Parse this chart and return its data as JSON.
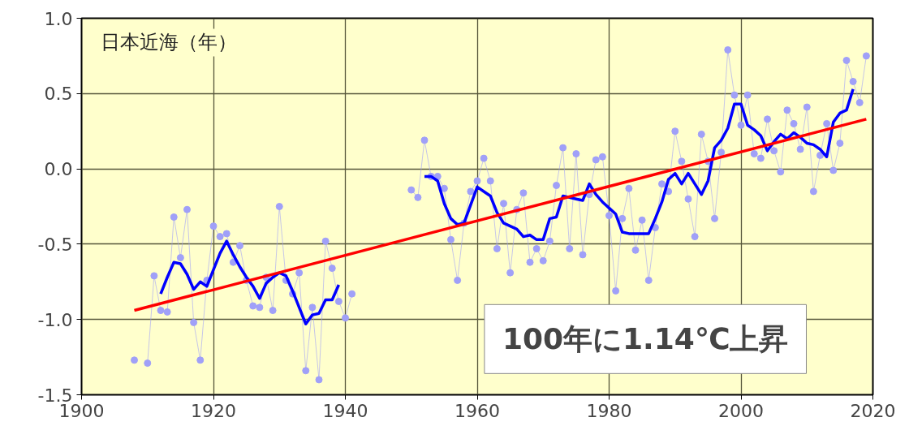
{
  "chart_data": {
    "type": "line",
    "title": "日本近海（年）",
    "xlim": [
      1900,
      2020
    ],
    "xticks": [
      1900,
      1920,
      1940,
      1960,
      1980,
      2000,
      2020
    ],
    "ylim": [
      -1.5,
      1.0
    ],
    "yticks": [
      {
        "value": 1.0,
        "label": "1.0"
      },
      {
        "value": 0.5,
        "label": "0.5"
      },
      {
        "value": 0.0,
        "label": "0.0"
      },
      {
        "value": -0.5,
        "label": "-0.5"
      },
      {
        "value": -1.0,
        "label": "-1.0"
      },
      {
        "value": -1.5,
        "label": "-1.5"
      }
    ],
    "grid": true,
    "annotations": [
      "100年に1.14℃上昇"
    ],
    "series": [
      {
        "color": "#a0a0f8",
        "marker": "circle",
        "x": [
          1908,
          1909,
          1910,
          1911,
          1912,
          1913,
          1914,
          1915,
          1916,
          1917,
          1918,
          1919,
          1920,
          1921,
          1922,
          1923,
          1924,
          1925,
          1926,
          1927,
          1928,
          1929,
          1930,
          1931,
          1932,
          1933,
          1934,
          1935,
          1936,
          1937,
          1938,
          1939,
          1940,
          1941,
          1942,
          1943,
          1944,
          1945,
          1946,
          1947,
          1948,
          1949,
          1950,
          1951,
          1952,
          1953,
          1954,
          1955,
          1956,
          1957,
          1958,
          1959,
          1960,
          1961,
          1962,
          1963,
          1964,
          1965,
          1966,
          1967,
          1968,
          1969,
          1970,
          1971,
          1972,
          1973,
          1974,
          1975,
          1976,
          1977,
          1978,
          1979,
          1980,
          1981,
          1982,
          1983,
          1984,
          1985,
          1986,
          1987,
          1988,
          1989,
          1990,
          1991,
          1992,
          1993,
          1994,
          1995,
          1996,
          1997,
          1998,
          1999,
          2000,
          2001,
          2002,
          2003,
          2004,
          2005,
          2006,
          2007,
          2008,
          2009,
          2010,
          2011,
          2012,
          2013,
          2014,
          2015,
          2016,
          2017,
          2018,
          2019
        ],
        "values": [
          -1.27,
          null,
          -1.29,
          -0.71,
          -0.94,
          -0.95,
          -0.32,
          -0.59,
          -0.27,
          -1.02,
          -1.27,
          -0.74,
          -0.38,
          -0.45,
          -0.43,
          -0.62,
          -0.51,
          -0.74,
          -0.91,
          -0.92,
          -0.72,
          -0.94,
          -0.25,
          -0.74,
          -0.83,
          -0.69,
          -1.34,
          -0.92,
          -1.4,
          -0.48,
          -0.66,
          -0.88,
          -0.99,
          -0.83,
          null,
          null,
          null,
          null,
          null,
          null,
          null,
          null,
          -0.14,
          -0.19,
          0.19,
          -0.05,
          -0.05,
          -0.13,
          -0.47,
          -0.74,
          -0.36,
          -0.15,
          -0.08,
          0.07,
          -0.08,
          -0.53,
          -0.23,
          -0.69,
          -0.27,
          -0.16,
          -0.62,
          -0.53,
          -0.61,
          -0.48,
          -0.11,
          0.14,
          -0.53,
          0.1,
          -0.57,
          -0.17,
          0.06,
          0.08,
          -0.31,
          -0.81,
          -0.33,
          -0.13,
          -0.54,
          -0.34,
          -0.74,
          -0.39,
          -0.1,
          -0.15,
          0.25,
          0.05,
          -0.2,
          -0.45,
          0.23,
          0.05,
          -0.33,
          0.11,
          0.79,
          0.49,
          0.29,
          0.49,
          0.1,
          0.07,
          0.33,
          0.12,
          -0.02,
          0.39,
          0.3,
          0.13,
          0.41,
          -0.15,
          0.09,
          0.3,
          -0.01,
          0.17,
          0.72,
          0.58,
          0.44,
          0.75
        ]
      },
      {
        "color": "#0000ff",
        "marker": "none",
        "x": [
          1912,
          1913,
          1914,
          1915,
          1916,
          1917,
          1918,
          1919,
          1920,
          1921,
          1922,
          1923,
          1924,
          1925,
          1926,
          1927,
          1928,
          1929,
          1930,
          1931,
          1932,
          1933,
          1934,
          1935,
          1936,
          1937,
          1938,
          1939,
          1940,
          1941,
          1942,
          1943,
          1944,
          1945,
          1946,
          1947,
          1948,
          1949,
          1950,
          1951,
          1952,
          1953,
          1954,
          1955,
          1956,
          1957,
          1958,
          1959,
          1960,
          1961,
          1962,
          1963,
          1964,
          1965,
          1966,
          1967,
          1968,
          1969,
          1970,
          1971,
          1972,
          1973,
          1974,
          1975,
          1976,
          1977,
          1978,
          1979,
          1980,
          1981,
          1982,
          1983,
          1984,
          1985,
          1986,
          1987,
          1988,
          1989,
          1990,
          1991,
          1992,
          1993,
          1994,
          1995,
          1996,
          1997,
          1998,
          1999,
          2000,
          2001,
          2002,
          2003,
          2004,
          2005,
          2006,
          2007,
          2008,
          2009,
          2010,
          2011,
          2012,
          2013,
          2014,
          2015,
          2016,
          2017
        ],
        "values": [
          -0.83,
          -0.72,
          -0.62,
          -0.63,
          -0.7,
          -0.8,
          -0.75,
          -0.78,
          -0.67,
          -0.56,
          -0.48,
          -0.57,
          -0.65,
          -0.72,
          -0.78,
          -0.86,
          -0.76,
          -0.72,
          -0.69,
          -0.71,
          -0.81,
          -0.92,
          -1.03,
          -0.97,
          -0.96,
          -0.87,
          -0.87,
          -0.77,
          null,
          null,
          null,
          null,
          null,
          null,
          null,
          null,
          null,
          null,
          null,
          null,
          -0.05,
          -0.05,
          -0.08,
          -0.23,
          -0.33,
          -0.37,
          -0.36,
          -0.24,
          -0.12,
          -0.15,
          -0.18,
          -0.29,
          -0.36,
          -0.38,
          -0.4,
          -0.45,
          -0.44,
          -0.47,
          -0.47,
          -0.33,
          -0.32,
          -0.18,
          -0.19,
          -0.2,
          -0.21,
          -0.1,
          -0.17,
          -0.22,
          -0.26,
          -0.3,
          -0.42,
          -0.43,
          -0.43,
          -0.43,
          -0.43,
          -0.33,
          -0.22,
          -0.07,
          -0.03,
          -0.1,
          -0.03,
          -0.1,
          -0.17,
          -0.08,
          0.14,
          0.19,
          0.27,
          0.43,
          0.43,
          0.29,
          0.26,
          0.22,
          0.12,
          0.18,
          0.23,
          0.2,
          0.24,
          0.21,
          0.17,
          0.16,
          0.13,
          0.08,
          0.31,
          0.37,
          0.39,
          0.53
        ]
      },
      {
        "color": "#ff0000",
        "marker": "none",
        "x": [
          1908,
          2019
        ],
        "values": [
          -0.94,
          0.33
        ]
      }
    ]
  }
}
